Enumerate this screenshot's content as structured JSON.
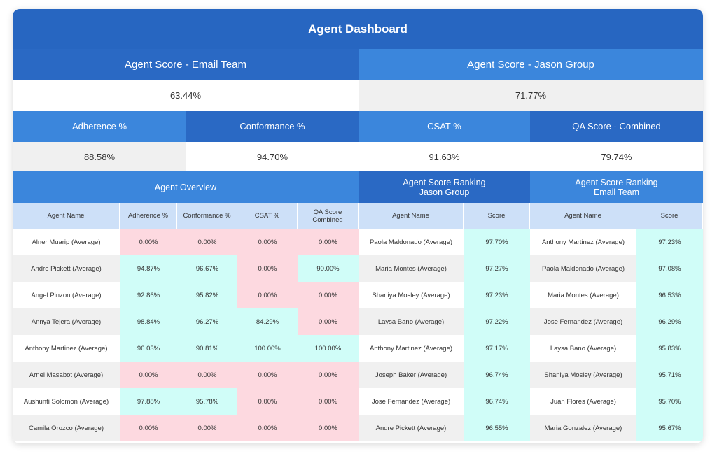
{
  "title": "Agent Dashboard",
  "email_score": {
    "label": "Agent Score - Email Team",
    "value": "63.44%"
  },
  "jason_score": {
    "label": "Agent Score - Jason Group",
    "value": "71.77%"
  },
  "metrics": [
    {
      "label": "Adherence %",
      "value": "88.58%"
    },
    {
      "label": "Conformance %",
      "value": "94.70%"
    },
    {
      "label": "CSAT %",
      "value": "91.63%"
    },
    {
      "label": "QA Score - Combined",
      "value": "79.74%"
    }
  ],
  "overview": {
    "title": "Agent Overview",
    "columns": [
      "Agent Name",
      "Adherence %",
      "Conformance %",
      "CSAT %",
      "QA Score Combined"
    ],
    "rows": [
      [
        "Alner Muarip (Average)",
        "0.00%",
        "0.00%",
        "0.00%",
        "0.00%"
      ],
      [
        "Andre Pickett (Average)",
        "94.87%",
        "96.67%",
        "0.00%",
        "90.00%"
      ],
      [
        "Angel Pinzon (Average)",
        "92.86%",
        "95.82%",
        "0.00%",
        "0.00%"
      ],
      [
        "Annya Tejera (Average)",
        "98.84%",
        "96.27%",
        "84.29%",
        "0.00%"
      ],
      [
        "Anthony Martinez (Average)",
        "96.03%",
        "90.81%",
        "100.00%",
        "100.00%"
      ],
      [
        "Arnei Masabot (Average)",
        "0.00%",
        "0.00%",
        "0.00%",
        "0.00%"
      ],
      [
        "Aushunti Solomon (Average)",
        "97.88%",
        "95.78%",
        "0.00%",
        "0.00%"
      ],
      [
        "Camila Orozco (Average)",
        "0.00%",
        "0.00%",
        "0.00%",
        "0.00%"
      ]
    ]
  },
  "jason_ranking": {
    "title_line1": "Agent Score Ranking",
    "title_line2": "Jason Group",
    "columns": [
      "Agent Name",
      "Score"
    ],
    "rows": [
      [
        "Paola Maldonado (Average)",
        "97.70%"
      ],
      [
        "Maria Montes (Average)",
        "97.27%"
      ],
      [
        "Shaniya Mosley (Average)",
        "97.23%"
      ],
      [
        "Laysa Bano (Average)",
        "97.22%"
      ],
      [
        "Anthony Martinez (Average)",
        "97.17%"
      ],
      [
        "Joseph Baker (Average)",
        "96.74%"
      ],
      [
        "Jose Fernandez (Average)",
        "96.74%"
      ],
      [
        "Andre Pickett (Average)",
        "96.55%"
      ]
    ]
  },
  "email_ranking": {
    "title_line1": "Agent Score Ranking",
    "title_line2": "Email Team",
    "columns": [
      "Agent Name",
      "Score"
    ],
    "rows": [
      [
        "Anthony Martinez (Average)",
        "97.23%"
      ],
      [
        "Paola Maldonado (Average)",
        "97.08%"
      ],
      [
        "Maria Montes (Average)",
        "96.53%"
      ],
      [
        "Jose Fernandez (Average)",
        "96.29%"
      ],
      [
        "Laysa Bano (Average)",
        "95.83%"
      ],
      [
        "Shaniya Mosley (Average)",
        "95.71%"
      ],
      [
        "Juan Flores (Average)",
        "95.70%"
      ],
      [
        "Maria Gonzalez (Average)",
        "95.67%"
      ]
    ]
  },
  "colors": {
    "dark_blue": "#2a69c4",
    "light_blue": "#3b86dc",
    "low": "#fdd9e0",
    "ok": "#d0fdf8"
  }
}
